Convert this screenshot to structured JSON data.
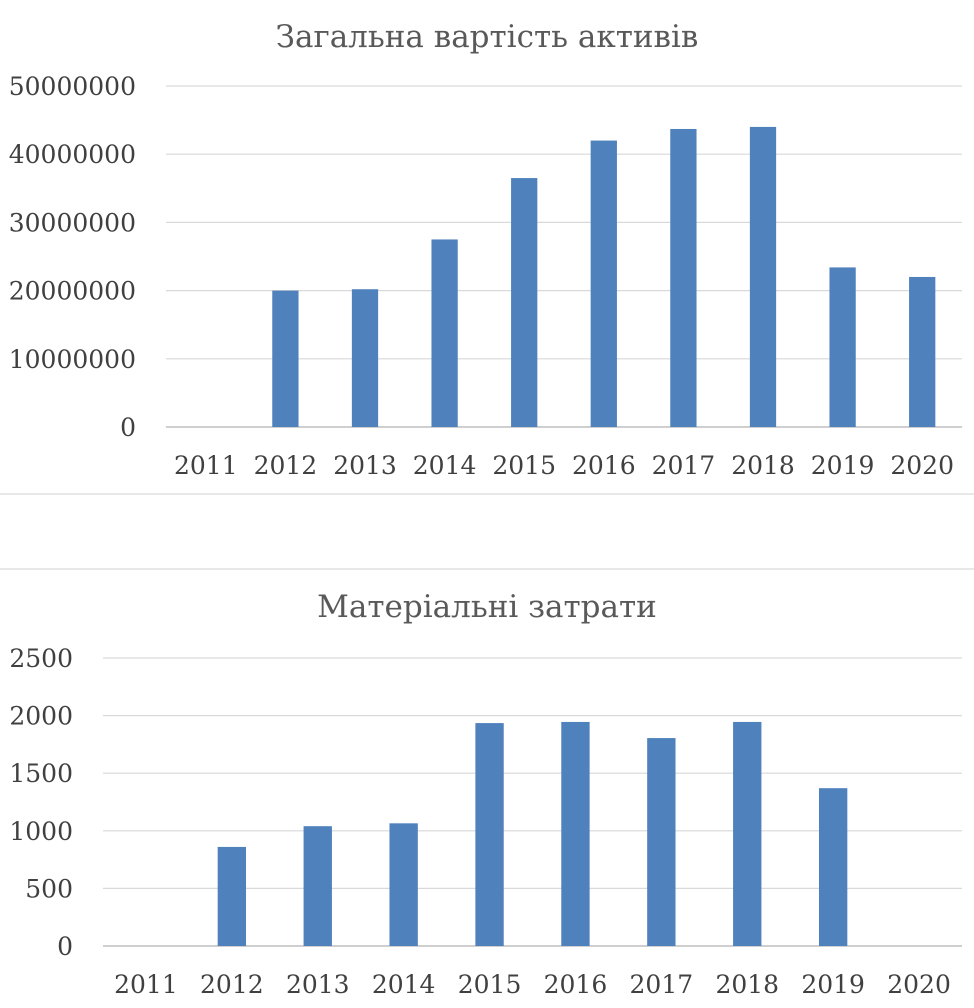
{
  "chart_data": [
    {
      "type": "bar",
      "title": "Загальна вартість активів",
      "categories": [
        "2011",
        "2012",
        "2013",
        "2014",
        "2015",
        "2016",
        "2017",
        "2018",
        "2019",
        "2020"
      ],
      "values": [
        0,
        20000000,
        20200000,
        27500000,
        36500000,
        42000000,
        43700000,
        44000000,
        23400000,
        22000000
      ],
      "y_ticks": [
        "0",
        "10000000",
        "20000000",
        "30000000",
        "40000000",
        "50000000"
      ],
      "ylim": [
        0,
        50000000
      ],
      "bar_color": "#4f81bd",
      "grid": true,
      "legend": "none"
    },
    {
      "type": "bar",
      "title": "Матеріальні затрати",
      "categories": [
        "2011",
        "2012",
        "2013",
        "2014",
        "2015",
        "2016",
        "2017",
        "2018",
        "2019",
        "2020"
      ],
      "values": [
        0,
        860,
        1040,
        1065,
        1935,
        1945,
        1805,
        1945,
        1370,
        0
      ],
      "y_ticks": [
        "0",
        "500",
        "1000",
        "1500",
        "2000",
        "2500"
      ],
      "ylim": [
        0,
        2500
      ],
      "bar_color": "#4f81bd",
      "grid": true,
      "legend": "none"
    }
  ]
}
